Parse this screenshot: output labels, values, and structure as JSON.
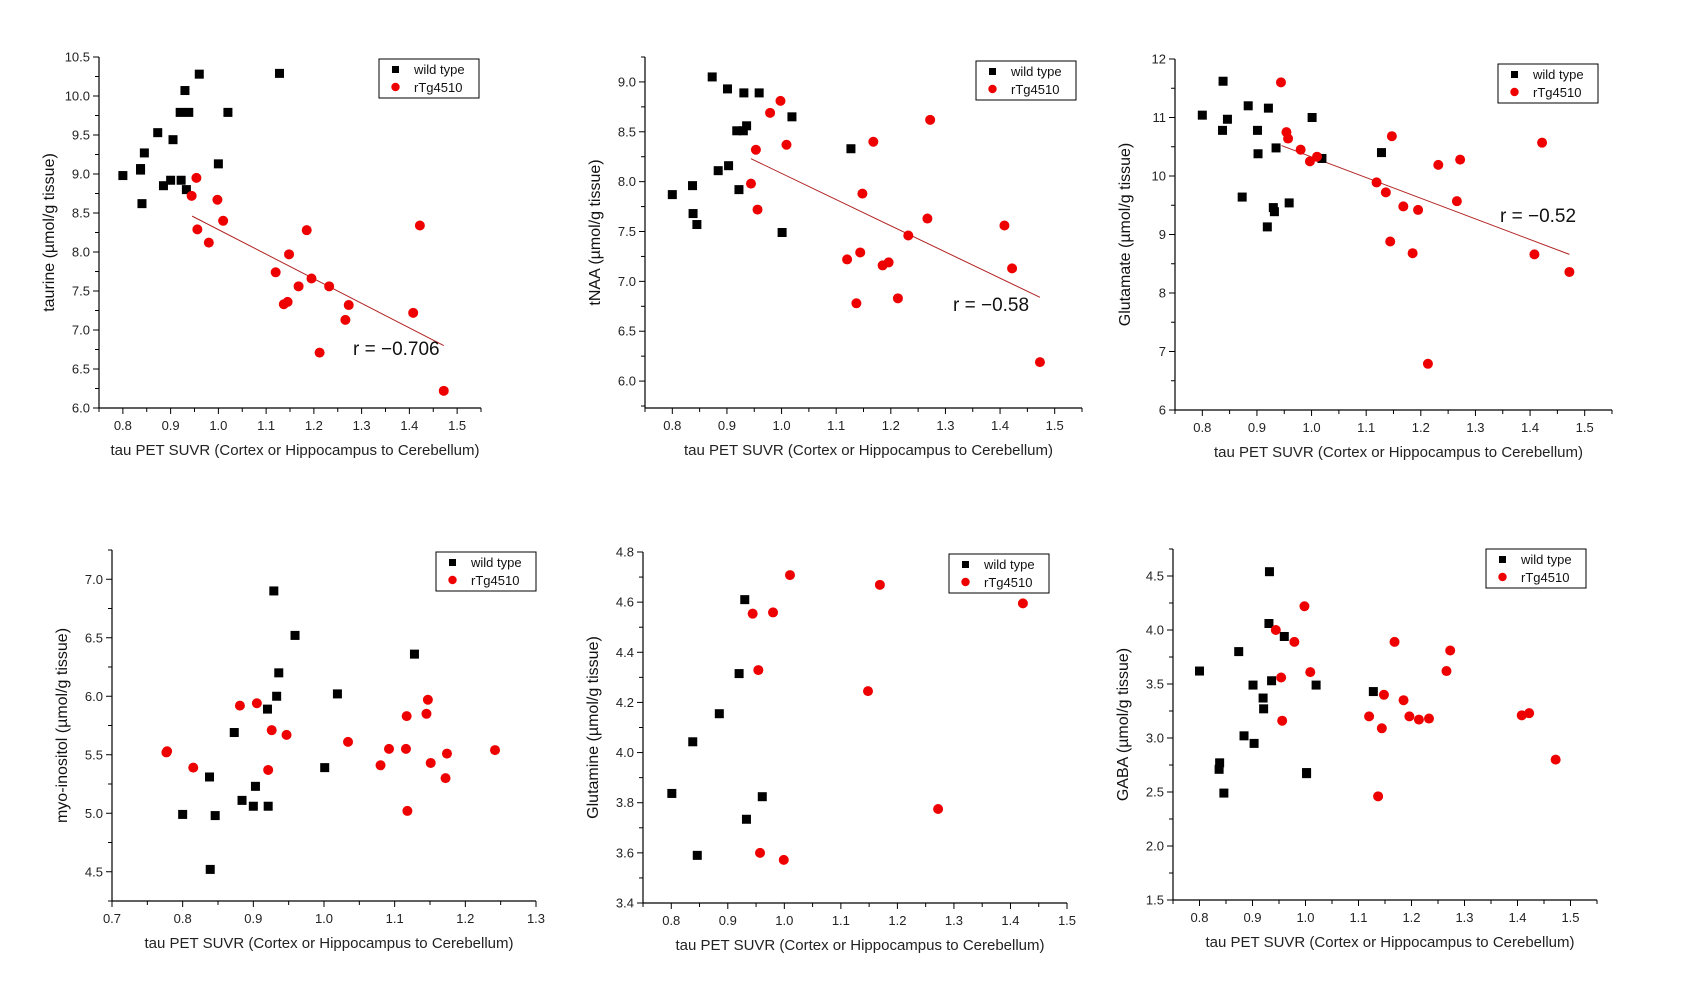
{
  "colors": {
    "wild_type": "#000000",
    "rTg4510": "#ee0000",
    "fit_line": "#b22222"
  },
  "chart_data": [
    {
      "type": "scatter",
      "ylabel": "taurine (µmol/g tissue)",
      "xlabel": "tau PET SUVR (Cortex or Hippocampus to Cerebellum)",
      "xlim": [
        0.75,
        1.55
      ],
      "ylim": [
        6.0,
        10.5
      ],
      "xticks": [
        0.8,
        0.9,
        1.0,
        1.1,
        1.2,
        1.3,
        1.4,
        1.5
      ],
      "xtick_labels": [
        "0.8",
        "0.9",
        "1.0",
        "1.1",
        "1.2",
        "1.3",
        "1.4",
        "1.5"
      ],
      "yticks": [
        6.0,
        6.5,
        7.0,
        7.5,
        8.0,
        8.5,
        9.0,
        9.5,
        10.0,
        10.5
      ],
      "ytick_labels": [
        "6.0",
        "6.5",
        "7.0",
        "7.5",
        "8.0",
        "8.5",
        "9.0",
        "9.5",
        "10.0",
        "10.5"
      ],
      "legend": {
        "position": "top-right",
        "entries": [
          "wild type",
          "rTg4510"
        ]
      },
      "annotation": "r = −0.706",
      "fit": {
        "series": "rTg4510",
        "x": [
          0.945,
          1.472
        ],
        "y": [
          8.46,
          6.8
        ]
      },
      "series": [
        {
          "name": "wild type",
          "marker": "square",
          "x": [
            0.8,
            0.837,
            0.837,
            0.84,
            0.845,
            0.873,
            0.885,
            0.9,
            0.905,
            0.92,
            0.922,
            0.93,
            0.933,
            0.938,
            0.96,
            1.0,
            1.02,
            1.128
          ],
          "y": [
            8.98,
            9.07,
            9.05,
            8.62,
            9.27,
            9.53,
            8.85,
            8.92,
            9.44,
            9.79,
            8.92,
            10.07,
            8.8,
            9.79,
            10.28,
            9.13,
            9.79,
            10.29
          ]
        },
        {
          "name": "rTg4510",
          "marker": "circle",
          "x": [
            0.944,
            0.954,
            0.956,
            0.98,
            0.998,
            1.01,
            1.12,
            1.137,
            1.145,
            1.148,
            1.168,
            1.185,
            1.195,
            1.212,
            1.232,
            1.266,
            1.273,
            1.408,
            1.422,
            1.472
          ],
          "y": [
            8.72,
            8.95,
            8.29,
            8.12,
            8.67,
            8.4,
            7.74,
            7.33,
            7.36,
            7.97,
            7.56,
            8.28,
            7.66,
            6.71,
            7.56,
            7.13,
            7.32,
            7.22,
            8.34,
            6.22
          ]
        }
      ]
    },
    {
      "type": "scatter",
      "ylabel": "tNAA (µmol/g tissue)",
      "xlabel": "tau PET SUVR (Cortex or Hippocampus to Cerebellum)",
      "xlim": [
        0.75,
        1.55
      ],
      "ylim": [
        5.73,
        9.25
      ],
      "xticks": [
        0.8,
        0.9,
        1.0,
        1.1,
        1.2,
        1.3,
        1.4,
        1.5
      ],
      "xtick_labels": [
        "0.8",
        "0.9",
        "1.0",
        "1.1",
        "1.2",
        "1.3",
        "1.4",
        "1.5"
      ],
      "yticks": [
        6.0,
        6.5,
        7.0,
        7.5,
        8.0,
        8.5,
        9.0
      ],
      "ytick_labels": [
        "6.0",
        "6.5",
        "7.0",
        "7.5",
        "8.0",
        "8.5",
        "9.0"
      ],
      "legend": {
        "position": "top-right",
        "entries": [
          "wild type",
          "rTg4510"
        ]
      },
      "annotation": "r = −0.58",
      "fit": {
        "series": "rTg4510",
        "x": [
          0.944,
          1.473
        ],
        "y": [
          8.23,
          6.84
        ]
      },
      "series": [
        {
          "name": "wild type",
          "marker": "square",
          "x": [
            0.8,
            0.837,
            0.838,
            0.845,
            0.873,
            0.884,
            0.901,
            0.903,
            0.918,
            0.922,
            0.93,
            0.931,
            0.936,
            0.959,
            1.001,
            1.019,
            1.127
          ],
          "y": [
            7.87,
            7.96,
            7.68,
            7.57,
            9.05,
            8.11,
            8.93,
            8.16,
            8.51,
            7.92,
            8.51,
            8.89,
            8.56,
            8.89,
            7.49,
            8.65,
            8.33
          ]
        },
        {
          "name": "rTg4510",
          "marker": "circle",
          "x": [
            0.944,
            0.953,
            0.956,
            0.979,
            0.998,
            1.009,
            1.12,
            1.137,
            1.144,
            1.148,
            1.168,
            1.185,
            1.196,
            1.213,
            1.232,
            1.267,
            1.272,
            1.408,
            1.422,
            1.473
          ],
          "y": [
            7.98,
            8.32,
            7.72,
            8.69,
            8.81,
            8.37,
            7.22,
            6.78,
            7.29,
            7.88,
            8.4,
            7.16,
            7.19,
            6.83,
            7.46,
            7.63,
            8.62,
            7.56,
            7.13,
            6.19
          ]
        }
      ]
    },
    {
      "type": "scatter",
      "ylabel": "Glutamate (µmol/g tissue)",
      "xlabel": "tau PET SUVR (Cortex or Hippocampus to Cerebellum)",
      "xlim": [
        0.75,
        1.55
      ],
      "ylim": [
        6,
        12
      ],
      "xticks": [
        0.8,
        0.9,
        1.0,
        1.1,
        1.2,
        1.3,
        1.4,
        1.5
      ],
      "xtick_labels": [
        "0.8",
        "0.9",
        "1.0",
        "1.1",
        "1.2",
        "1.3",
        "1.4",
        "1.5"
      ],
      "yticks": [
        6,
        7,
        8,
        9,
        10,
        11,
        12
      ],
      "ytick_labels": [
        "6",
        "7",
        "8",
        "9",
        "10",
        "11",
        "12"
      ],
      "legend": {
        "position": "top-right",
        "entries": [
          "wild type",
          "rTg4510"
        ]
      },
      "annotation": "r = −0.52",
      "fit": {
        "series": "rTg4510",
        "x": [
          0.945,
          1.472
        ],
        "y": [
          10.52,
          8.66
        ]
      },
      "series": [
        {
          "name": "wild type",
          "marker": "square",
          "x": [
            0.8,
            0.837,
            0.838,
            0.846,
            0.873,
            0.884,
            0.901,
            0.902,
            0.919,
            0.921,
            0.93,
            0.932,
            0.935,
            0.959,
            1.001,
            1.019,
            1.128
          ],
          "y": [
            11.04,
            10.78,
            11.62,
            10.97,
            9.64,
            11.2,
            10.78,
            10.38,
            9.13,
            11.16,
            9.46,
            9.39,
            10.48,
            9.54,
            11.0,
            10.3,
            10.4
          ]
        },
        {
          "name": "rTg4510",
          "marker": "circle",
          "x": [
            0.944,
            0.954,
            0.957,
            0.98,
            0.997,
            1.01,
            1.119,
            1.136,
            1.144,
            1.147,
            1.168,
            1.185,
            1.195,
            1.213,
            1.232,
            1.266,
            1.272,
            1.408,
            1.422,
            1.472
          ],
          "y": [
            11.6,
            10.75,
            10.64,
            10.45,
            10.25,
            10.33,
            9.89,
            9.72,
            8.88,
            10.68,
            9.48,
            8.68,
            9.42,
            6.79,
            10.19,
            9.57,
            10.28,
            8.66,
            10.57,
            8.36
          ]
        }
      ]
    },
    {
      "type": "scatter",
      "ylabel": "myo-inositol (µmol/g tissue)",
      "xlabel": "tau PET SUVR (Cortex or Hippocampus to Cerebellum)",
      "xlim": [
        0.7,
        1.3
      ],
      "ylim": [
        4.25,
        7.25
      ],
      "xticks": [
        0.7,
        0.8,
        0.9,
        1.0,
        1.1,
        1.2,
        1.3
      ],
      "xtick_labels": [
        "0.7",
        "0.8",
        "0.9",
        "1.0",
        "1.1",
        "1.2",
        "1.3"
      ],
      "yticks": [
        4.5,
        5.0,
        5.5,
        6.0,
        6.5,
        7.0
      ],
      "ytick_labels": [
        "4.5",
        "5.0",
        "5.5",
        "6.0",
        "6.5",
        "7.0"
      ],
      "legend": {
        "position": "top-right",
        "entries": [
          "wild type",
          "rTg4510"
        ]
      },
      "series": [
        {
          "name": "wild type",
          "marker": "square",
          "x": [
            0.8,
            0.838,
            0.839,
            0.846,
            0.873,
            0.884,
            0.9,
            0.903,
            0.92,
            0.921,
            0.929,
            0.933,
            0.936,
            0.959,
            1.001,
            1.019,
            1.128
          ],
          "y": [
            4.99,
            5.31,
            4.52,
            4.98,
            5.69,
            5.11,
            5.06,
            5.23,
            5.89,
            5.06,
            6.9,
            6.0,
            6.2,
            6.52,
            5.39,
            6.02,
            6.36
          ]
        },
        {
          "name": "rTg4510",
          "marker": "circle",
          "x": [
            0.778,
            0.777,
            0.815,
            0.881,
            0.905,
            0.921,
            0.926,
            0.947,
            1.034,
            1.08,
            1.092,
            1.116,
            1.117,
            1.118,
            1.145,
            1.147,
            1.151,
            1.172,
            1.174,
            1.242
          ],
          "y": [
            5.53,
            5.52,
            5.39,
            5.92,
            5.94,
            5.37,
            5.71,
            5.67,
            5.61,
            5.41,
            5.55,
            5.55,
            5.83,
            5.02,
            5.85,
            5.97,
            5.43,
            5.3,
            5.51,
            5.54
          ]
        }
      ]
    },
    {
      "type": "scatter",
      "ylabel": "Glutamine (µmol/g tissue)",
      "xlabel": "tau PET SUVR (Cortex or Hippocampus to Cerebellum)",
      "xlim": [
        0.75,
        1.5
      ],
      "ylim": [
        3.4,
        4.8
      ],
      "xticks": [
        0.8,
        0.9,
        1.0,
        1.1,
        1.2,
        1.3,
        1.4,
        1.5
      ],
      "xtick_labels": [
        "0.8",
        "0.9",
        "1.0",
        "1.1",
        "1.2",
        "1.3",
        "1.4",
        "1.5"
      ],
      "yticks": [
        3.4,
        3.6,
        3.8,
        4.0,
        4.2,
        4.4,
        4.6,
        4.8
      ],
      "ytick_labels": [
        "3.4",
        "3.6",
        "3.8",
        "4.0",
        "4.2",
        "4.4",
        "4.6",
        "4.8"
      ],
      "legend": {
        "position": "top-right",
        "entries": [
          "wild type",
          "rTg4510"
        ]
      },
      "series": [
        {
          "name": "wild type",
          "marker": "square",
          "x": [
            0.801,
            0.838,
            0.846,
            0.885,
            0.92,
            0.93,
            0.933,
            0.961
          ],
          "y": [
            3.837,
            4.043,
            3.59,
            4.155,
            4.315,
            4.61,
            3.734,
            3.824
          ]
        },
        {
          "name": "rTg4510",
          "marker": "circle",
          "x": [
            0.944,
            0.954,
            0.957,
            0.98,
            0.999,
            1.01,
            1.148,
            1.169,
            1.272,
            1.422
          ],
          "y": [
            4.554,
            4.329,
            3.6,
            4.559,
            3.572,
            4.708,
            4.245,
            4.669,
            3.775,
            4.595
          ]
        }
      ]
    },
    {
      "type": "scatter",
      "ylabel": "GABA (µmol/g tissue)",
      "xlabel": "tau PET SUVR (Cortex or Hippocampus to Cerebellum)",
      "xlim": [
        0.75,
        1.55
      ],
      "ylim": [
        1.5,
        4.75
      ],
      "xticks": [
        0.8,
        0.9,
        1.0,
        1.1,
        1.2,
        1.3,
        1.4,
        1.5
      ],
      "xtick_labels": [
        "0.8",
        "0.9",
        "1.0",
        "1.1",
        "1.2",
        "1.3",
        "1.4",
        "1.5"
      ],
      "yticks": [
        1.5,
        2.0,
        2.5,
        3.0,
        3.5,
        4.0,
        4.5
      ],
      "ytick_labels": [
        "1.5",
        "2.0",
        "2.5",
        "3.0",
        "3.5",
        "4.0",
        "4.5"
      ],
      "legend": {
        "position": "top-right",
        "entries": [
          "wild type",
          "rTg4510"
        ]
      },
      "series": [
        {
          "name": "wild type",
          "marker": "square",
          "x": [
            0.8,
            0.837,
            0.838,
            0.846,
            0.874,
            0.884,
            0.901,
            0.903,
            0.92,
            0.921,
            0.931,
            0.932,
            0.936,
            0.96,
            1.002,
            1.002,
            1.02,
            1.128
          ],
          "y": [
            3.62,
            2.71,
            2.77,
            2.49,
            3.8,
            3.02,
            3.49,
            2.95,
            3.37,
            3.27,
            4.06,
            4.54,
            3.53,
            3.94,
            2.67,
            2.68,
            3.49,
            3.43
          ]
        },
        {
          "name": "rTg4510",
          "marker": "circle",
          "x": [
            0.944,
            0.954,
            0.956,
            0.979,
            0.998,
            1.009,
            1.12,
            1.137,
            1.144,
            1.148,
            1.168,
            1.185,
            1.196,
            1.214,
            1.233,
            1.266,
            1.273,
            1.408,
            1.422,
            1.472
          ],
          "y": [
            4.0,
            3.56,
            3.16,
            3.89,
            4.22,
            3.61,
            3.2,
            2.46,
            3.09,
            3.4,
            3.89,
            3.35,
            3.2,
            3.17,
            3.18,
            3.62,
            3.81,
            3.21,
            3.23,
            2.8
          ]
        }
      ]
    }
  ]
}
